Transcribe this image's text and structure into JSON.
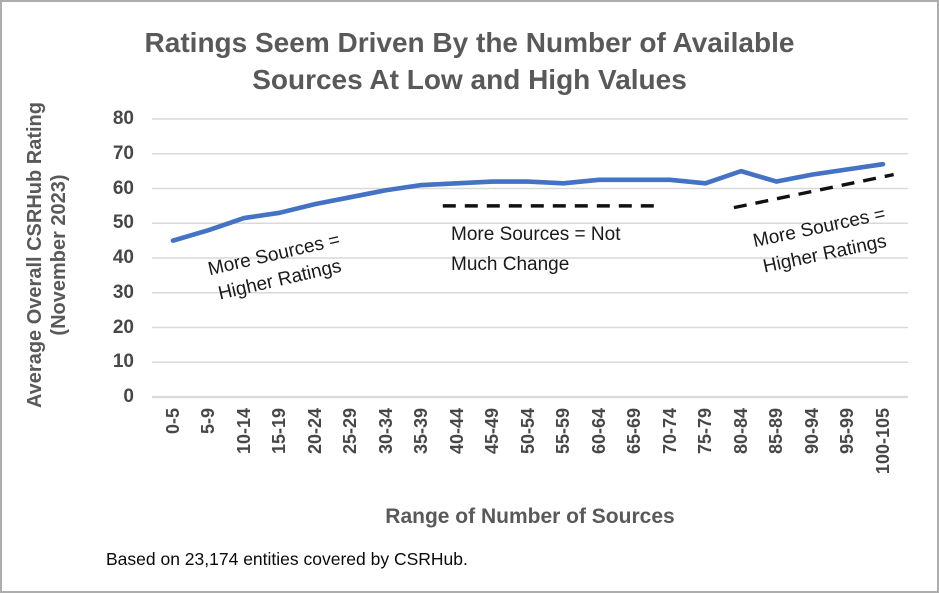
{
  "title": {
    "line1": "Ratings Seem Driven By the Number of Available",
    "line2": "Sources At Low and High Values",
    "color": "#595959"
  },
  "footer": {
    "text": "Based on 23,174 entities covered by CSRHub."
  },
  "chart_data": {
    "type": "line",
    "title": "Ratings Seem Driven By the Number of Available Sources At Low and High Values",
    "xlabel": "Range of Number of Sources",
    "ylabel_line1": "Average Overall CSRHub Rating",
    "ylabel_line2": "(November 2023)",
    "ylim": [
      0,
      80
    ],
    "yticks": [
      0,
      10,
      20,
      30,
      40,
      50,
      60,
      70,
      80
    ],
    "grid": true,
    "gridline_color": "#d9d9d9",
    "plot_background": "#ffffff",
    "categories": [
      "0-5",
      "5-9",
      "10-14",
      "15-19",
      "20-24",
      "25-29",
      "30-34",
      "35-39",
      "40-44",
      "45-49",
      "50-54",
      "55-59",
      "60-64",
      "65-69",
      "70-74",
      "75-79",
      "80-84",
      "85-89",
      "90-94",
      "95-99",
      "100-105"
    ],
    "series": [
      {
        "name": "Average Overall CSRHub Rating (November 2023)",
        "color": "#4472c4",
        "values": [
          45,
          48,
          51.5,
          53,
          55.5,
          57.5,
          59.5,
          61,
          61.5,
          62,
          62,
          61.5,
          62.5,
          62.5,
          62.5,
          61.5,
          65,
          62,
          64,
          65.5,
          67
        ]
      }
    ],
    "trend_dashes": [
      {
        "id": "flat-middle",
        "color": "#111111",
        "x_from_idx": 7.6,
        "x_to_idx": 13.7,
        "y_from": 55,
        "y_to": 55
      },
      {
        "id": "rising-right",
        "color": "#111111",
        "x_from_idx": 15.8,
        "x_to_idx": 20.3,
        "y_from": 54.5,
        "y_to": 64
      }
    ],
    "annotations": [
      {
        "id": "left",
        "rotation_deg": -13,
        "lines": [
          "More Sources =",
          "Higher Ratings"
        ]
      },
      {
        "id": "middle",
        "rotation_deg": 0,
        "lines": [
          "More Sources = Not",
          "Much Change"
        ]
      },
      {
        "id": "right",
        "rotation_deg": -12,
        "lines": [
          "More Sources =",
          "Higher Ratings"
        ]
      }
    ]
  }
}
